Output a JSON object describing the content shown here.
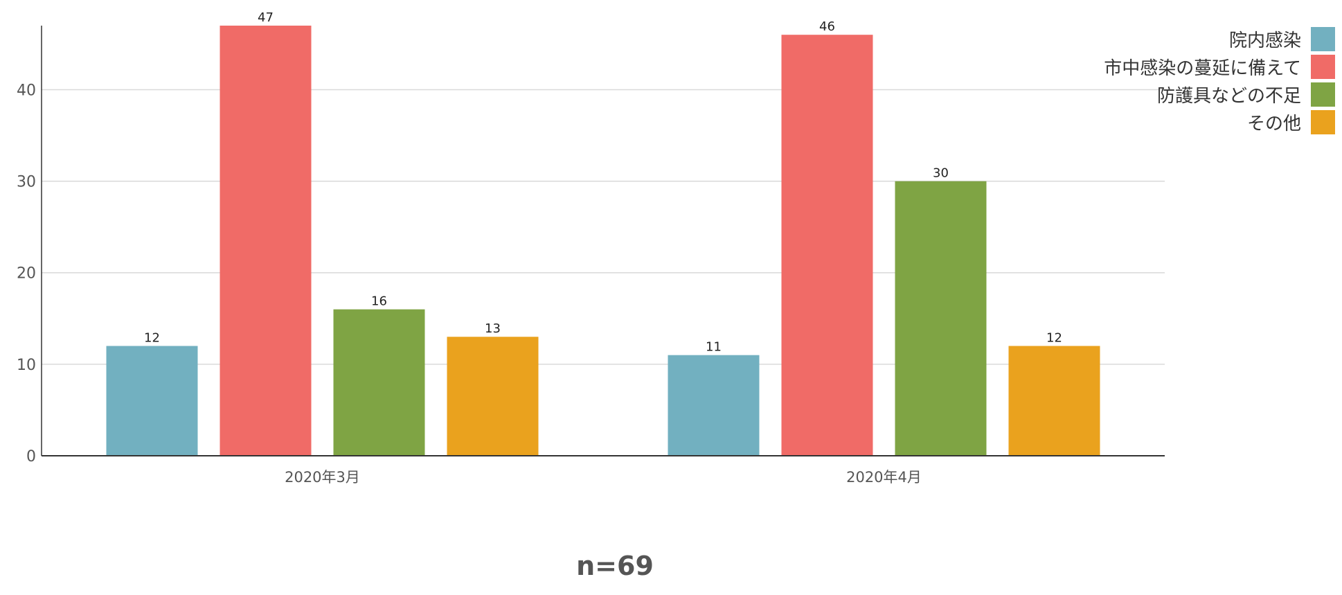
{
  "footer": {
    "note": "n=69"
  },
  "chart_data": {
    "type": "bar",
    "categories": [
      "2020年3月",
      "2020年4月"
    ],
    "series": [
      {
        "name": "院内感染",
        "values": [
          12,
          11
        ],
        "color": "#72b0c0"
      },
      {
        "name": "市中感染の蔓延に備えて",
        "values": [
          47,
          46
        ],
        "color": "#f06b67"
      },
      {
        "name": "防護具などの不足",
        "values": [
          16,
          30
        ],
        "color": "#7fa444"
      },
      {
        "name": "その他",
        "values": [
          13,
          12
        ],
        "color": "#eaa21e"
      }
    ],
    "ylim": [
      0,
      47
    ],
    "yticks": [
      0,
      10,
      20,
      30,
      40
    ],
    "grid": true,
    "data_labels": true,
    "legend_position": "top-right",
    "title": "",
    "xlabel": "",
    "ylabel": ""
  }
}
